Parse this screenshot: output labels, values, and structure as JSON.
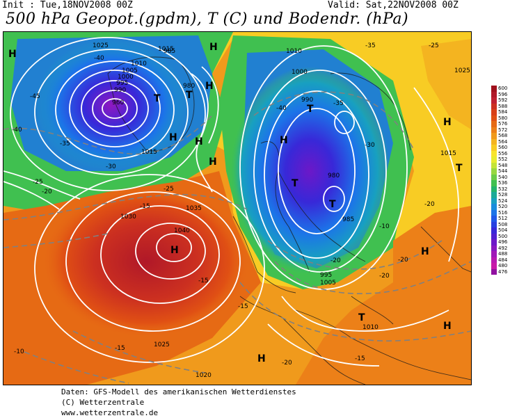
{
  "header": {
    "init": "Init : Tue,18NOV2008 00Z",
    "valid": "Valid: Sat,22NOV2008 00Z",
    "title": "500 hPa Geopot.(gpdm), T (C) und Bodendr. (hPa)"
  },
  "legend": {
    "items": [
      {
        "label": "600",
        "color": "#a0101c"
      },
      {
        "label": "596",
        "color": "#b01828"
      },
      {
        "label": "592",
        "color": "#c02030"
      },
      {
        "label": "588",
        "color": "#cc3020"
      },
      {
        "label": "584",
        "color": "#d84018"
      },
      {
        "label": "580",
        "color": "#e05014"
      },
      {
        "label": "576",
        "color": "#e66a14"
      },
      {
        "label": "572",
        "color": "#ec8018"
      },
      {
        "label": "568",
        "color": "#f09a1c"
      },
      {
        "label": "564",
        "color": "#f4b420"
      },
      {
        "label": "560",
        "color": "#f8cc24"
      },
      {
        "label": "556",
        "color": "#f8e42c"
      },
      {
        "label": "552",
        "color": "#e8ec30"
      },
      {
        "label": "548",
        "color": "#c4e438"
      },
      {
        "label": "544",
        "color": "#98d840"
      },
      {
        "label": "540",
        "color": "#6ccc48"
      },
      {
        "label": "536",
        "color": "#40c050"
      },
      {
        "label": "532",
        "color": "#24b46c"
      },
      {
        "label": "528",
        "color": "#1caa98"
      },
      {
        "label": "524",
        "color": "#18a0c0"
      },
      {
        "label": "520",
        "color": "#188cdc"
      },
      {
        "label": "516",
        "color": "#1c74e8"
      },
      {
        "label": "512",
        "color": "#2058e8"
      },
      {
        "label": "508",
        "color": "#2840e0"
      },
      {
        "label": "504",
        "color": "#3828d8"
      },
      {
        "label": "500",
        "color": "#5020d0"
      },
      {
        "label": "496",
        "color": "#6c18c8"
      },
      {
        "label": "492",
        "color": "#8818c0"
      },
      {
        "label": "488",
        "color": "#a018b8"
      },
      {
        "label": "484",
        "color": "#b818b0"
      },
      {
        "label": "480",
        "color": "#c818a8"
      },
      {
        "label": "476",
        "color": "#9010a0"
      }
    ]
  },
  "credits": {
    "line1": "Daten: GFS-Modell des amerikanischen Wetterdienstes",
    "line2": "(C) Wetterzentrale",
    "line3": "www.wetterzentrale.de"
  },
  "map": {
    "pressure_labels": [
      "1025",
      "1015",
      "1010",
      "1005",
      "1000",
      "995",
      "990",
      "985",
      "980",
      "960",
      "1030",
      "1035",
      "1040",
      "1020",
      "1025",
      "1015",
      "1010",
      "1000",
      "995",
      "1005",
      "1010",
      "1025",
      "1015",
      "985",
      "990",
      "980"
    ],
    "temp_labels": [
      "-40",
      "-45",
      "-40",
      "-35",
      "-30",
      "-25",
      "-20",
      "-15",
      "-10",
      "-35",
      "-40",
      "-35",
      "-30",
      "-25",
      "-20",
      "-15",
      "-10",
      "-15",
      "-20",
      "-25",
      "-20",
      "-15",
      "-20",
      "-15",
      "-20"
    ],
    "highs": [
      "H",
      "H",
      "H",
      "H",
      "H",
      "H",
      "H",
      "H",
      "H",
      "H",
      "H",
      "H"
    ],
    "lows": [
      "T",
      "T",
      "T",
      "T",
      "T",
      "T",
      "T"
    ]
  }
}
